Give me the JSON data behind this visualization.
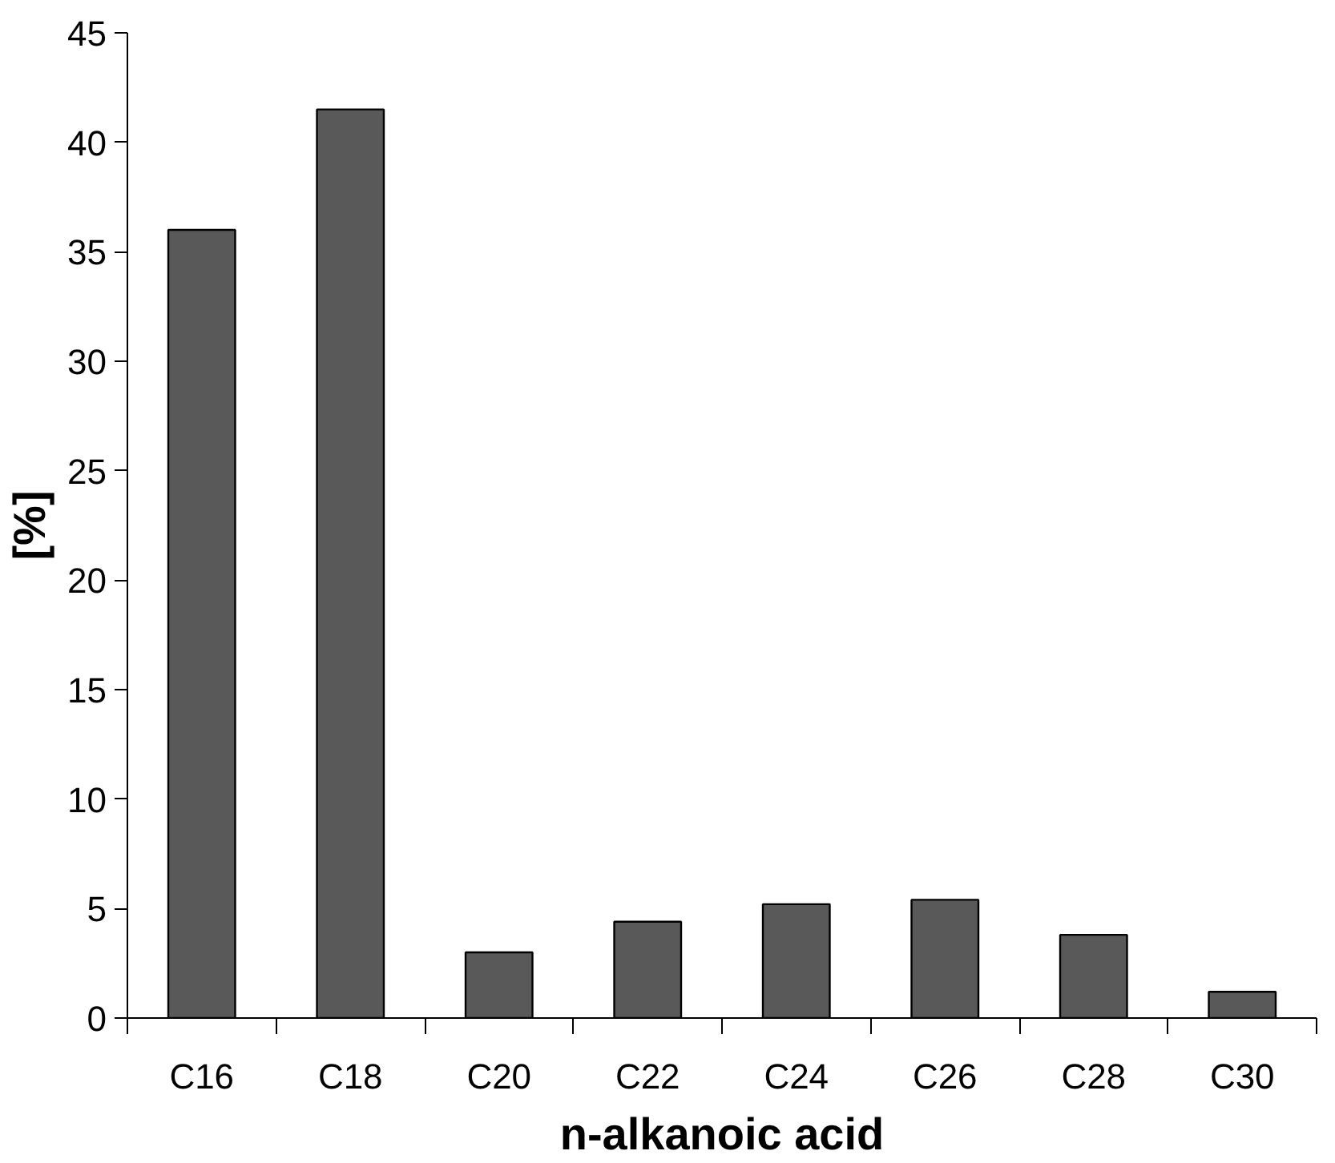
{
  "chart_data": {
    "type": "bar",
    "xlabel": "n-alkanoic acid",
    "ylabel": "[%]",
    "categories": [
      "C16",
      "C18",
      "C20",
      "C22",
      "C24",
      "C26",
      "C28",
      "C30"
    ],
    "values": [
      36.0,
      41.5,
      3.0,
      4.4,
      5.2,
      5.4,
      3.8,
      1.2
    ],
    "color": "#595959",
    "ylim": [
      0,
      45
    ],
    "yticks": [
      0,
      5,
      10,
      15,
      20,
      25,
      30,
      35,
      40,
      45
    ],
    "grid": false
  }
}
